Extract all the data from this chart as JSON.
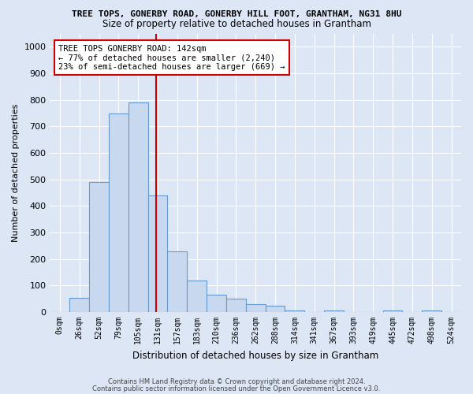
{
  "title": "TREE TOPS, GONERBY ROAD, GONERBY HILL FOOT, GRANTHAM, NG31 8HU",
  "subtitle": "Size of property relative to detached houses in Grantham",
  "xlabel": "Distribution of detached houses by size in Grantham",
  "ylabel": "Number of detached properties",
  "bin_labels": [
    "0sqm",
    "26sqm",
    "52sqm",
    "79sqm",
    "105sqm",
    "131sqm",
    "157sqm",
    "183sqm",
    "210sqm",
    "236sqm",
    "262sqm",
    "288sqm",
    "314sqm",
    "341sqm",
    "367sqm",
    "393sqm",
    "419sqm",
    "445sqm",
    "472sqm",
    "498sqm",
    "524sqm"
  ],
  "values": [
    0,
    55,
    490,
    750,
    790,
    440,
    230,
    120,
    65,
    50,
    30,
    25,
    5,
    0,
    5,
    0,
    0,
    5,
    0,
    5,
    0
  ],
  "bar_color": "#c8d9ef",
  "bar_edge_color": "#6699cc",
  "vline_position": 5.42,
  "vline_color": "#cc0000",
  "annotation_text": "TREE TOPS GONERBY ROAD: 142sqm\n← 77% of detached houses are smaller (2,240)\n23% of semi-detached houses are larger (669) →",
  "annotation_box_facecolor": "#ffffff",
  "annotation_box_edgecolor": "#cc0000",
  "ylim": [
    0,
    1050
  ],
  "yticks": [
    0,
    100,
    200,
    300,
    400,
    500,
    600,
    700,
    800,
    900,
    1000
  ],
  "background_color": "#dce6f5",
  "grid_color": "#ffffff",
  "footer_line1": "Contains HM Land Registry data © Crown copyright and database right 2024.",
  "footer_line2": "Contains public sector information licensed under the Open Government Licence v3.0."
}
